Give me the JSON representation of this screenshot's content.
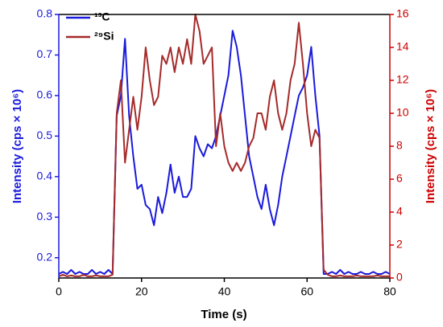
{
  "chart_data": {
    "type": "line",
    "x_label": "Time (s)",
    "y_label": "Intensity (cps × 10⁶)",
    "y2_label": "Intensity (cps × 10⁶)",
    "x": [
      0,
      1,
      2,
      3,
      4,
      5,
      6,
      7,
      8,
      9,
      10,
      11,
      12,
      13,
      14,
      15,
      16,
      17,
      18,
      19,
      20,
      21,
      22,
      23,
      24,
      25,
      26,
      27,
      28,
      29,
      30,
      31,
      32,
      33,
      34,
      35,
      36,
      37,
      38,
      39,
      40,
      41,
      42,
      43,
      44,
      45,
      46,
      47,
      48,
      49,
      50,
      51,
      52,
      53,
      54,
      55,
      56,
      57,
      58,
      59,
      60,
      61,
      62,
      63,
      64,
      65,
      66,
      67,
      68,
      69,
      70,
      71,
      72,
      73,
      74,
      75,
      76,
      77,
      78,
      79,
      80
    ],
    "series": [
      {
        "name": "¹³C",
        "color": "#1a1adb",
        "axis": "y",
        "values": [
          0.16,
          0.165,
          0.16,
          0.17,
          0.16,
          0.165,
          0.16,
          0.16,
          0.17,
          0.16,
          0.165,
          0.16,
          0.17,
          0.16,
          0.55,
          0.6,
          0.74,
          0.55,
          0.45,
          0.37,
          0.38,
          0.33,
          0.32,
          0.28,
          0.35,
          0.31,
          0.36,
          0.43,
          0.36,
          0.4,
          0.35,
          0.35,
          0.37,
          0.5,
          0.47,
          0.45,
          0.48,
          0.47,
          0.5,
          0.55,
          0.6,
          0.65,
          0.76,
          0.72,
          0.65,
          0.55,
          0.45,
          0.4,
          0.35,
          0.32,
          0.38,
          0.32,
          0.28,
          0.33,
          0.4,
          0.45,
          0.5,
          0.55,
          0.6,
          0.62,
          0.65,
          0.72,
          0.6,
          0.5,
          0.16,
          0.16,
          0.165,
          0.16,
          0.17,
          0.16,
          0.165,
          0.16,
          0.16,
          0.165,
          0.16,
          0.16,
          0.165,
          0.16,
          0.16,
          0.165,
          0.16
        ]
      },
      {
        "name": "²⁹Si",
        "color": "#a52a2a",
        "axis": "y2",
        "values": [
          0.1,
          0.2,
          0.1,
          0.15,
          0.1,
          0.1,
          0.2,
          0.1,
          0.1,
          0.15,
          0.1,
          0.1,
          0.1,
          0.2,
          10,
          12,
          7,
          9,
          11,
          9,
          11,
          14,
          12,
          10.5,
          11,
          13.5,
          13,
          14,
          12.5,
          14,
          13,
          14.5,
          13,
          16,
          15,
          13,
          13.5,
          14,
          8,
          10,
          8,
          7,
          6.5,
          7,
          6.5,
          7,
          8,
          8.5,
          10,
          10,
          9,
          11,
          12,
          10,
          9,
          10,
          12,
          13,
          15.5,
          13,
          10,
          8,
          9,
          8.5,
          0.5,
          0.2,
          0.1,
          0.1,
          0.15,
          0.1,
          0.1,
          0.1,
          0.15,
          0.1,
          0.1,
          0.1,
          0.1,
          0.15,
          0.1,
          0.1,
          0.1
        ]
      }
    ],
    "xlim": [
      0,
      80
    ],
    "xticks": [
      0,
      20,
      40,
      60,
      80
    ],
    "ylim": [
      0.15,
      0.8
    ],
    "yticks": [
      0.2,
      0.3,
      0.4,
      0.5,
      0.6,
      0.7,
      0.8
    ],
    "y2lim": [
      0,
      16
    ],
    "y2ticks": [
      0,
      2,
      4,
      6,
      8,
      10,
      12,
      14,
      16
    ],
    "y_color": "#1a1adb",
    "y2_color": "#cc0000",
    "legend": "upper left"
  }
}
